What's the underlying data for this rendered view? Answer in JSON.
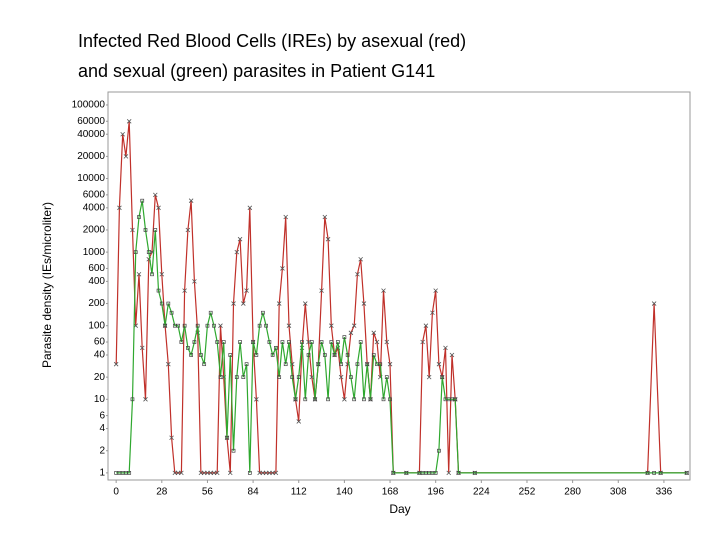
{
  "chart_data": {
    "type": "line",
    "title_lines": [
      "Infected Red Blood Cells (IREs) by asexual (red)",
      "and sexual (green) parasites in Patient G141"
    ],
    "x_label": "Day",
    "y_label": "Parasite density (IEs/microliter)",
    "log_y": true,
    "grid": false,
    "xlim": [
      -5,
      352
    ],
    "ylim": [
      0.8,
      150000
    ],
    "xticks": [
      0,
      28,
      56,
      84,
      112,
      140,
      168,
      196,
      224,
      252,
      280,
      308,
      336
    ],
    "yticks": [
      1,
      2,
      4,
      6,
      10,
      20,
      40,
      60,
      100,
      200,
      400,
      600,
      1000,
      2000,
      4000,
      6000,
      10000,
      20000,
      40000,
      60000,
      100000
    ],
    "x": [
      0,
      2,
      4,
      6,
      8,
      10,
      12,
      14,
      16,
      18,
      20,
      22,
      24,
      26,
      28,
      30,
      32,
      34,
      36,
      38,
      40,
      42,
      44,
      46,
      48,
      50,
      52,
      54,
      56,
      58,
      60,
      62,
      64,
      66,
      68,
      70,
      72,
      74,
      76,
      78,
      80,
      82,
      84,
      86,
      88,
      90,
      92,
      94,
      96,
      98,
      100,
      102,
      104,
      106,
      108,
      110,
      112,
      114,
      116,
      118,
      120,
      122,
      124,
      126,
      128,
      130,
      132,
      134,
      136,
      138,
      140,
      142,
      144,
      146,
      148,
      150,
      152,
      154,
      156,
      158,
      160,
      162,
      164,
      166,
      168,
      170,
      178,
      186,
      188,
      190,
      192,
      194,
      196,
      198,
      200,
      202,
      204,
      206,
      208,
      210,
      220,
      326,
      330,
      334,
      350
    ],
    "series": [
      {
        "name": "asexual",
        "color": "#c0302a",
        "marker": "x",
        "values": [
          30,
          4000,
          40000,
          20000,
          60000,
          2000,
          100,
          500,
          50,
          10,
          800,
          1000,
          6000,
          4000,
          500,
          100,
          30,
          3,
          1,
          1,
          1,
          300,
          2000,
          5000,
          400,
          80,
          1,
          1,
          1,
          1,
          1,
          1,
          100,
          20,
          3,
          1,
          200,
          1000,
          1500,
          200,
          300,
          4000,
          60,
          10,
          1,
          1,
          1,
          1,
          1,
          1,
          200,
          600,
          3000,
          100,
          30,
          10,
          5,
          50,
          200,
          60,
          20,
          10,
          30,
          300,
          3000,
          1500,
          100,
          40,
          50,
          20,
          10,
          30,
          80,
          100,
          500,
          800,
          200,
          30,
          10,
          80,
          60,
          20,
          300,
          60,
          30,
          1,
          1,
          1,
          60,
          100,
          20,
          150,
          300,
          30,
          20,
          50,
          1,
          40,
          10,
          1,
          1,
          1,
          200,
          1,
          1
        ]
      },
      {
        "name": "sexual",
        "color": "#2fa82f",
        "marker": "square",
        "values": [
          1,
          1,
          1,
          1,
          1,
          10,
          1000,
          3000,
          5000,
          2000,
          1000,
          500,
          2000,
          300,
          200,
          100,
          200,
          150,
          100,
          100,
          60,
          100,
          50,
          40,
          60,
          100,
          40,
          30,
          100,
          150,
          100,
          60,
          20,
          60,
          3,
          40,
          2,
          20,
          60,
          20,
          30,
          1,
          60,
          40,
          100,
          150,
          100,
          60,
          40,
          50,
          20,
          60,
          30,
          60,
          20,
          10,
          20,
          60,
          10,
          40,
          60,
          10,
          30,
          60,
          40,
          10,
          60,
          40,
          60,
          30,
          70,
          40,
          20,
          10,
          30,
          60,
          10,
          30,
          10,
          40,
          30,
          30,
          10,
          20,
          10,
          1,
          1,
          1,
          1,
          1,
          1,
          1,
          1,
          2,
          20,
          10,
          10,
          10,
          10,
          1,
          1,
          1,
          1,
          1,
          1
        ]
      }
    ]
  }
}
